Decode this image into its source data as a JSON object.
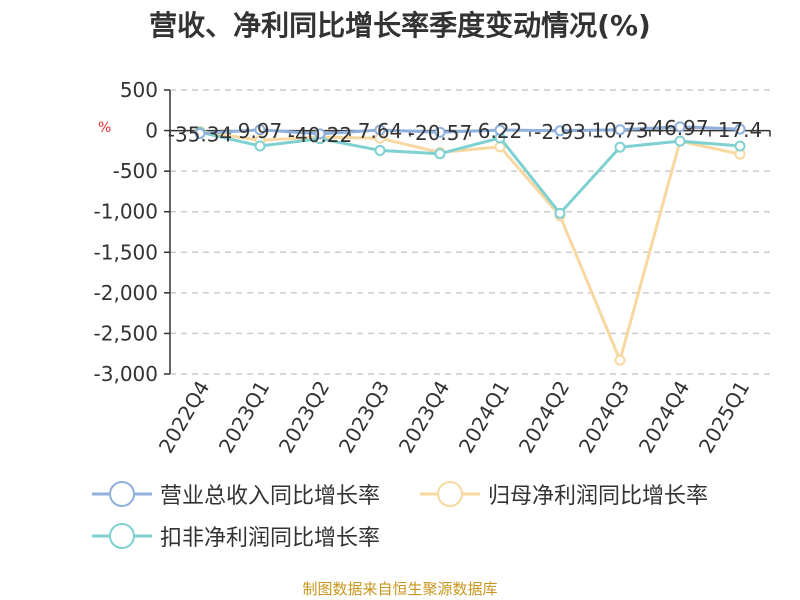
{
  "title": "营收、净利同比增长率季度变动情况(%)",
  "unit": "%",
  "source": "制图数据来自恒生聚源数据库",
  "chart_data": {
    "type": "line",
    "categories": [
      "2022Q4",
      "2023Q1",
      "2023Q2",
      "2023Q3",
      "2023Q4",
      "2024Q1",
      "2024Q2",
      "2024Q3",
      "2024Q4",
      "2025Q1"
    ],
    "ylim": [
      -3000,
      500
    ],
    "yticks": [
      500,
      0,
      -500,
      -1000,
      -1500,
      -2000,
      -2500,
      -3000
    ],
    "ytick_labels": [
      "500",
      "0",
      "-500",
      "-1,000",
      "-1,500",
      "-2,000",
      "-2,500",
      "-3,000"
    ],
    "grid": true,
    "legend_position": "bottom",
    "series": [
      {
        "name": "营业总收入同比增长率",
        "color": "#8fb0dc",
        "values": [
          -35.34,
          9.97,
          -40.22,
          7.64,
          -20.57,
          6.22,
          -2.93,
          10.73,
          46.97,
          17.4
        ],
        "labels": [
          "-35.34",
          "9.97",
          "-40.22",
          "7.64",
          "-20.57",
          "6.22",
          "-2.93",
          "10.73",
          "46.97",
          "17.4"
        ]
      },
      {
        "name": "归母净利润同比增长率",
        "color": "#f8d8a0",
        "values": [
          -10,
          -120,
          -80,
          -95,
          -270,
          -200,
          -1050,
          -2830,
          -130,
          -290
        ]
      },
      {
        "name": "扣非净利润同比增长率",
        "color": "#7fd0d0",
        "values": [
          -20,
          -190,
          -100,
          -245,
          -285,
          -90,
          -1020,
          -205,
          -130,
          -190
        ]
      }
    ]
  }
}
